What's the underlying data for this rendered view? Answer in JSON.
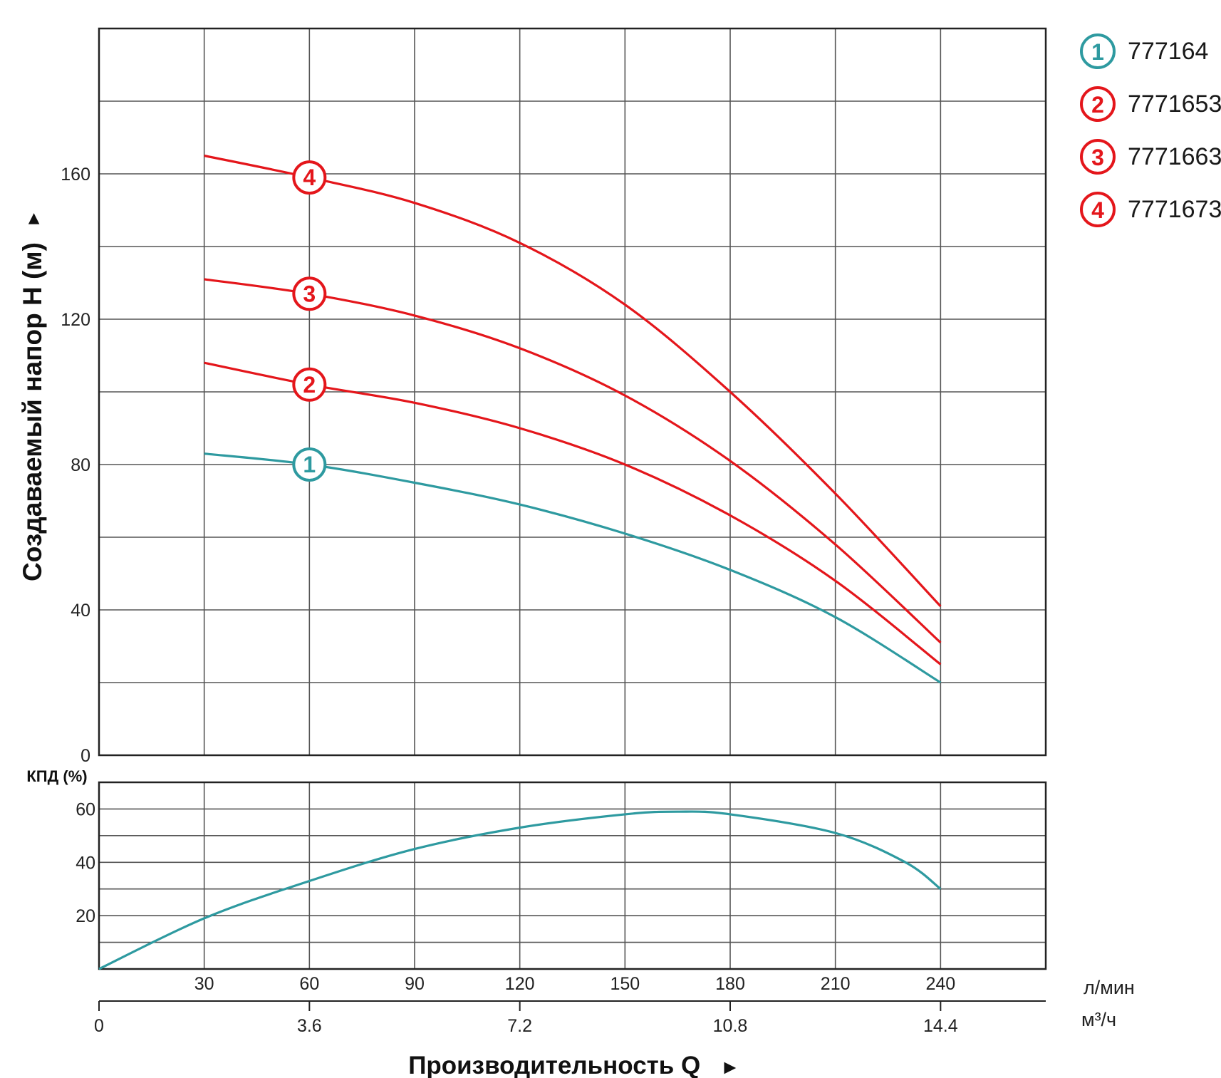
{
  "chart_data": [
    {
      "type": "line",
      "title": "",
      "ylabel": "Создаваемый напор H (м)",
      "ylim": [
        0,
        200
      ],
      "y_ticks": [
        0,
        40,
        80,
        120,
        160
      ],
      "xlim": [
        0,
        270
      ],
      "x_ticks": [
        30,
        60,
        90,
        120,
        150,
        180,
        210,
        240
      ],
      "xunit": "л/мин",
      "series": [
        {
          "id": "1",
          "name": "777164",
          "color": "#2e9aa0",
          "x": [
            30,
            60,
            90,
            120,
            150,
            180,
            210,
            240
          ],
          "y": [
            83,
            80,
            75,
            69,
            61,
            51,
            38,
            20
          ]
        },
        {
          "id": "2",
          "name": "7771653",
          "color": "#e4161b",
          "x": [
            30,
            60,
            90,
            120,
            150,
            180,
            210,
            240
          ],
          "y": [
            108,
            102,
            97,
            90,
            80,
            66,
            48,
            25
          ]
        },
        {
          "id": "3",
          "name": "7771663",
          "color": "#e4161b",
          "x": [
            30,
            60,
            90,
            120,
            150,
            180,
            210,
            240
          ],
          "y": [
            131,
            127,
            121,
            112,
            99,
            81,
            58,
            31
          ]
        },
        {
          "id": "4",
          "name": "7771673",
          "color": "#e4161b",
          "x": [
            30,
            60,
            90,
            120,
            150,
            180,
            210,
            240
          ],
          "y": [
            165,
            159,
            152,
            141,
            124,
            100,
            72,
            41
          ]
        }
      ],
      "badge_x": 60
    },
    {
      "type": "line",
      "ylabel": "КПД (%)",
      "ylim": [
        0,
        70
      ],
      "y_ticks": [
        20,
        40,
        60
      ],
      "xlim": [
        0,
        270
      ],
      "series": [
        {
          "name": "КПД",
          "color": "#2e9aa0",
          "x": [
            0,
            30,
            60,
            90,
            120,
            150,
            165,
            180,
            210,
            230,
            240
          ],
          "y": [
            0,
            19,
            33,
            45,
            53,
            58,
            59,
            58,
            51,
            40,
            30
          ]
        }
      ]
    }
  ],
  "legend": [
    {
      "num": "1",
      "code": "777164",
      "color": "#2e9aa0"
    },
    {
      "num": "2",
      "code": "7771653",
      "color": "#e4161b"
    },
    {
      "num": "3",
      "code": "7771663",
      "color": "#e4161b"
    },
    {
      "num": "4",
      "code": "7771673",
      "color": "#e4161b"
    }
  ],
  "axis_m3h": {
    "unit": "м³/ч",
    "tick_values": [
      0,
      3.6,
      7.2,
      10.8,
      14.4
    ],
    "tick_labels": [
      "0",
      "3.6",
      "7.2",
      "10.8",
      "14.4"
    ]
  },
  "labels": {
    "xlabel": "Производительность Q",
    "ylabel": "Создаваемый напор H (м)",
    "kpd": "КПД (%)",
    "unit_lmin": "л/мин",
    "unit_m3h": "м³/ч",
    "arrow_right": "►",
    "arrow_up": "►"
  },
  "colors": {
    "red": "#e4161b",
    "teal": "#2e9aa0",
    "grid": "#555555",
    "frame": "#222222"
  }
}
